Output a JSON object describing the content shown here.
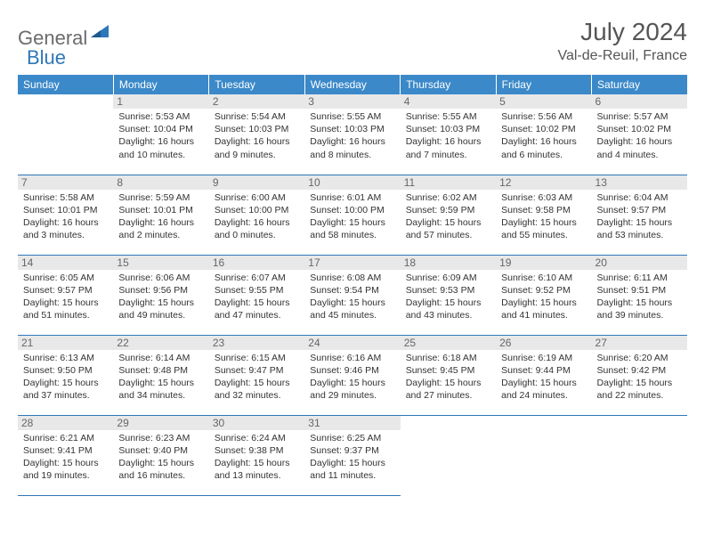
{
  "logo": {
    "general": "General",
    "blue": "Blue"
  },
  "title": "July 2024",
  "location": "Val-de-Reuil, France",
  "colors": {
    "header_bg": "#3b89c9",
    "header_text": "#ffffff",
    "border": "#2e77b8",
    "daynum_bg": "#e8e8e8",
    "text": "#333333",
    "logo_gray": "#6b6b6b",
    "logo_blue": "#2e77b8"
  },
  "weekdays": [
    "Sunday",
    "Monday",
    "Tuesday",
    "Wednesday",
    "Thursday",
    "Friday",
    "Saturday"
  ],
  "weeks": [
    [
      null,
      {
        "n": "1",
        "sr": "5:53 AM",
        "ss": "10:04 PM",
        "dl": "16 hours and 10 minutes."
      },
      {
        "n": "2",
        "sr": "5:54 AM",
        "ss": "10:03 PM",
        "dl": "16 hours and 9 minutes."
      },
      {
        "n": "3",
        "sr": "5:55 AM",
        "ss": "10:03 PM",
        "dl": "16 hours and 8 minutes."
      },
      {
        "n": "4",
        "sr": "5:55 AM",
        "ss": "10:03 PM",
        "dl": "16 hours and 7 minutes."
      },
      {
        "n": "5",
        "sr": "5:56 AM",
        "ss": "10:02 PM",
        "dl": "16 hours and 6 minutes."
      },
      {
        "n": "6",
        "sr": "5:57 AM",
        "ss": "10:02 PM",
        "dl": "16 hours and 4 minutes."
      }
    ],
    [
      {
        "n": "7",
        "sr": "5:58 AM",
        "ss": "10:01 PM",
        "dl": "16 hours and 3 minutes."
      },
      {
        "n": "8",
        "sr": "5:59 AM",
        "ss": "10:01 PM",
        "dl": "16 hours and 2 minutes."
      },
      {
        "n": "9",
        "sr": "6:00 AM",
        "ss": "10:00 PM",
        "dl": "16 hours and 0 minutes."
      },
      {
        "n": "10",
        "sr": "6:01 AM",
        "ss": "10:00 PM",
        "dl": "15 hours and 58 minutes."
      },
      {
        "n": "11",
        "sr": "6:02 AM",
        "ss": "9:59 PM",
        "dl": "15 hours and 57 minutes."
      },
      {
        "n": "12",
        "sr": "6:03 AM",
        "ss": "9:58 PM",
        "dl": "15 hours and 55 minutes."
      },
      {
        "n": "13",
        "sr": "6:04 AM",
        "ss": "9:57 PM",
        "dl": "15 hours and 53 minutes."
      }
    ],
    [
      {
        "n": "14",
        "sr": "6:05 AM",
        "ss": "9:57 PM",
        "dl": "15 hours and 51 minutes."
      },
      {
        "n": "15",
        "sr": "6:06 AM",
        "ss": "9:56 PM",
        "dl": "15 hours and 49 minutes."
      },
      {
        "n": "16",
        "sr": "6:07 AM",
        "ss": "9:55 PM",
        "dl": "15 hours and 47 minutes."
      },
      {
        "n": "17",
        "sr": "6:08 AM",
        "ss": "9:54 PM",
        "dl": "15 hours and 45 minutes."
      },
      {
        "n": "18",
        "sr": "6:09 AM",
        "ss": "9:53 PM",
        "dl": "15 hours and 43 minutes."
      },
      {
        "n": "19",
        "sr": "6:10 AM",
        "ss": "9:52 PM",
        "dl": "15 hours and 41 minutes."
      },
      {
        "n": "20",
        "sr": "6:11 AM",
        "ss": "9:51 PM",
        "dl": "15 hours and 39 minutes."
      }
    ],
    [
      {
        "n": "21",
        "sr": "6:13 AM",
        "ss": "9:50 PM",
        "dl": "15 hours and 37 minutes."
      },
      {
        "n": "22",
        "sr": "6:14 AM",
        "ss": "9:48 PM",
        "dl": "15 hours and 34 minutes."
      },
      {
        "n": "23",
        "sr": "6:15 AM",
        "ss": "9:47 PM",
        "dl": "15 hours and 32 minutes."
      },
      {
        "n": "24",
        "sr": "6:16 AM",
        "ss": "9:46 PM",
        "dl": "15 hours and 29 minutes."
      },
      {
        "n": "25",
        "sr": "6:18 AM",
        "ss": "9:45 PM",
        "dl": "15 hours and 27 minutes."
      },
      {
        "n": "26",
        "sr": "6:19 AM",
        "ss": "9:44 PM",
        "dl": "15 hours and 24 minutes."
      },
      {
        "n": "27",
        "sr": "6:20 AM",
        "ss": "9:42 PM",
        "dl": "15 hours and 22 minutes."
      }
    ],
    [
      {
        "n": "28",
        "sr": "6:21 AM",
        "ss": "9:41 PM",
        "dl": "15 hours and 19 minutes."
      },
      {
        "n": "29",
        "sr": "6:23 AM",
        "ss": "9:40 PM",
        "dl": "15 hours and 16 minutes."
      },
      {
        "n": "30",
        "sr": "6:24 AM",
        "ss": "9:38 PM",
        "dl": "15 hours and 13 minutes."
      },
      {
        "n": "31",
        "sr": "6:25 AM",
        "ss": "9:37 PM",
        "dl": "15 hours and 11 minutes."
      },
      null,
      null,
      null
    ]
  ]
}
